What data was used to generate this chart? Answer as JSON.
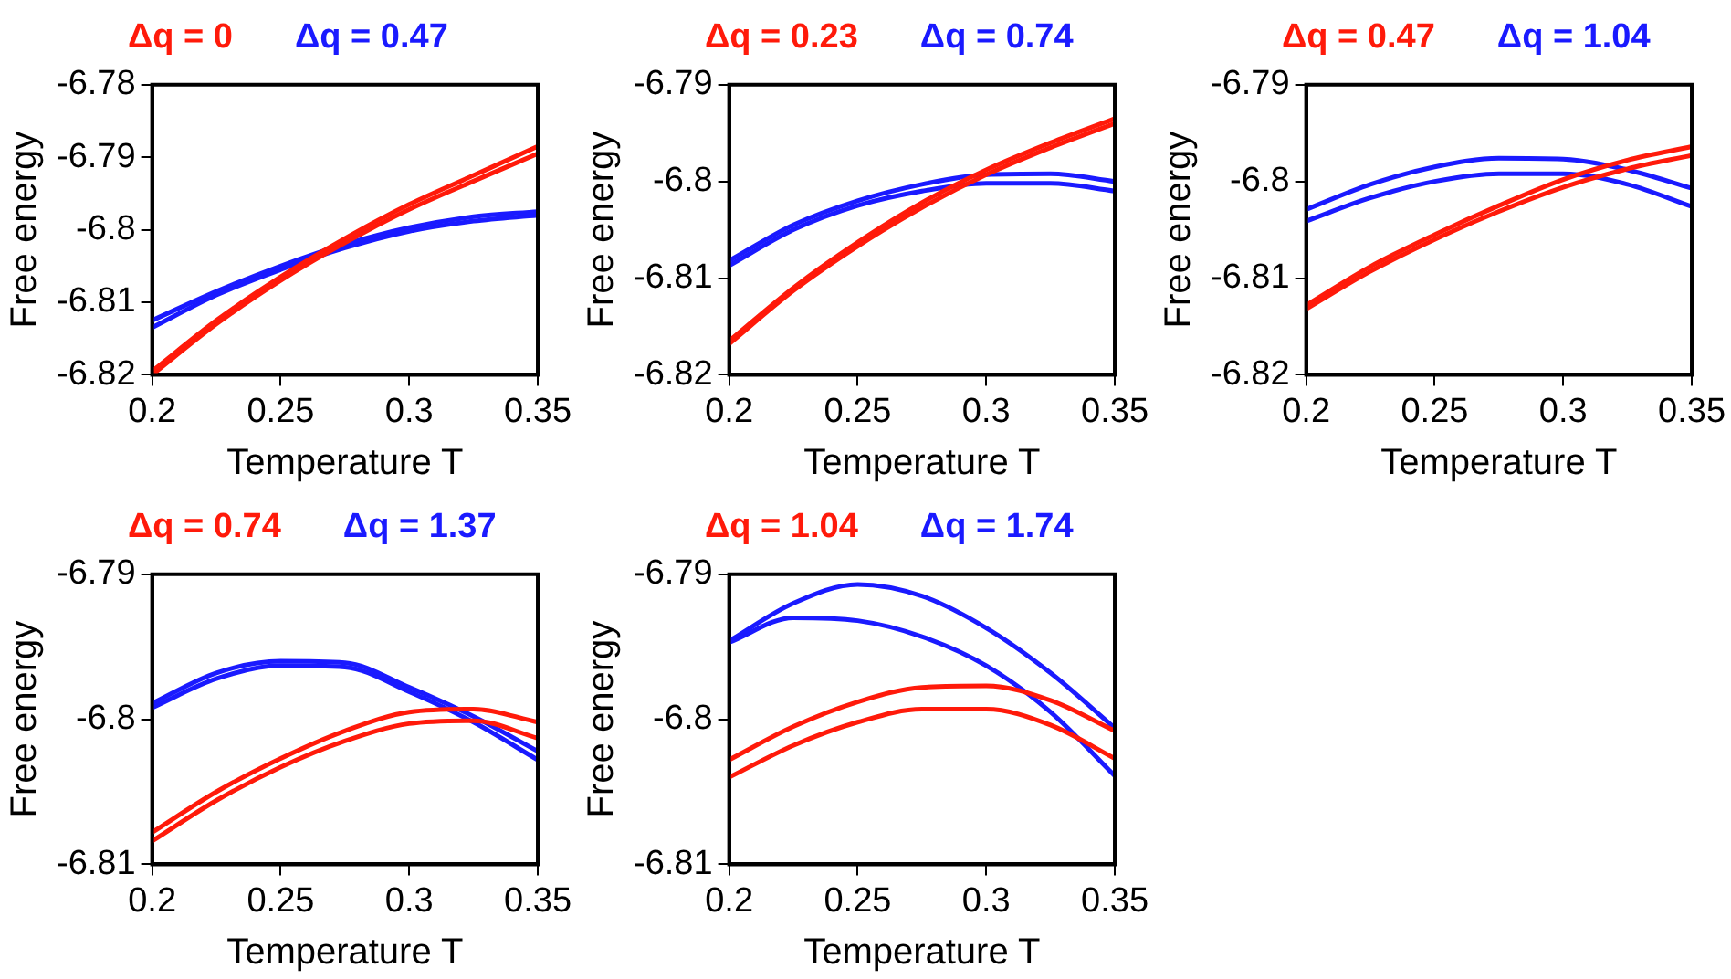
{
  "chart_data": [
    {
      "type": "line",
      "xlabel": "Temperature T",
      "ylabel": "Free energy",
      "legend": "top",
      "x": [
        0.2,
        0.225,
        0.25,
        0.275,
        0.3,
        0.325,
        0.35
      ],
      "xlim": [
        0.2,
        0.35
      ],
      "xticks": [
        0.2,
        0.25,
        0.3,
        0.35
      ],
      "ylim": [
        -6.82,
        -6.78
      ],
      "yticks": [
        -6.82,
        -6.81,
        -6.8,
        -6.79,
        -6.78
      ],
      "series": [
        {
          "name": "Δq = 0",
          "color": "#ff1a0a",
          "values": [
            -6.8195,
            -6.8125,
            -6.8065,
            -6.8012,
            -6.7965,
            -6.7925,
            -6.7885
          ]
        },
        {
          "color": "#ff1a0a",
          "values": [
            -6.82,
            -6.813,
            -6.807,
            -6.8018,
            -6.7972,
            -6.7933,
            -6.7895
          ]
        },
        {
          "name": "Δq = 0.47",
          "color": "#1a1aff",
          "values": [
            -6.8125,
            -6.8085,
            -6.805,
            -6.802,
            -6.7997,
            -6.7982,
            -6.7975
          ]
        },
        {
          "color": "#1a1aff",
          "values": [
            -6.8135,
            -6.809,
            -6.8055,
            -6.8025,
            -6.8002,
            -6.7988,
            -6.798
          ]
        }
      ]
    },
    {
      "type": "line",
      "xlabel": "Temperature T",
      "ylabel": "Free energy",
      "legend": "top",
      "x": [
        0.2,
        0.225,
        0.25,
        0.275,
        0.3,
        0.325,
        0.35
      ],
      "xlim": [
        0.2,
        0.35
      ],
      "xticks": [
        0.2,
        0.25,
        0.3,
        0.35
      ],
      "ylim": [
        -6.82,
        -6.79
      ],
      "yticks": [
        -6.82,
        -6.81,
        -6.8,
        -6.79
      ],
      "series": [
        {
          "name": "Δq = 0.23",
          "color": "#ff1a0a",
          "values": [
            -6.8165,
            -6.811,
            -6.8063,
            -6.8022,
            -6.7988,
            -6.796,
            -6.7935
          ]
        },
        {
          "color": "#ff1a0a",
          "values": [
            -6.8168,
            -6.8113,
            -6.8067,
            -6.8027,
            -6.7993,
            -6.7965,
            -6.794
          ]
        },
        {
          "name": "Δq = 0.74",
          "color": "#1a1aff",
          "values": [
            -6.8082,
            -6.8045,
            -6.802,
            -6.8003,
            -6.7993,
            -6.7992,
            -6.8
          ]
        },
        {
          "color": "#1a1aff",
          "values": [
            -6.8087,
            -6.805,
            -6.8025,
            -6.801,
            -6.8002,
            -6.8002,
            -6.801
          ]
        }
      ]
    },
    {
      "type": "line",
      "xlabel": "Temperature T",
      "ylabel": "Free energy",
      "legend": "top",
      "x": [
        0.2,
        0.225,
        0.25,
        0.275,
        0.3,
        0.325,
        0.35
      ],
      "xlim": [
        0.2,
        0.35
      ],
      "xticks": [
        0.2,
        0.25,
        0.3,
        0.35
      ],
      "ylim": [
        -6.82,
        -6.79
      ],
      "yticks": [
        -6.82,
        -6.81,
        -6.8,
        -6.79
      ],
      "series": [
        {
          "name": "Δq = 0.47",
          "color": "#ff1a0a",
          "values": [
            -6.8128,
            -6.8088,
            -6.8055,
            -6.8025,
            -6.7998,
            -6.7978,
            -6.7964
          ]
        },
        {
          "color": "#ff1a0a",
          "values": [
            -6.8132,
            -6.8093,
            -6.806,
            -6.8031,
            -6.8006,
            -6.7987,
            -6.7973
          ]
        },
        {
          "name": "Δq = 1.04",
          "color": "#1a1aff",
          "values": [
            -6.8029,
            -6.8003,
            -6.7985,
            -6.7976,
            -6.7977,
            -6.7988,
            -6.8007
          ]
        },
        {
          "color": "#1a1aff",
          "values": [
            -6.8041,
            -6.8017,
            -6.8,
            -6.7992,
            -6.7992,
            -6.8003,
            -6.8026
          ]
        }
      ]
    },
    {
      "type": "line",
      "xlabel": "Temperature T",
      "ylabel": "Free energy",
      "legend": "top",
      "x": [
        0.2,
        0.225,
        0.25,
        0.275,
        0.3,
        0.325,
        0.35
      ],
      "xlim": [
        0.2,
        0.35
      ],
      "xticks": [
        0.2,
        0.25,
        0.3,
        0.35
      ],
      "ylim": [
        -6.81,
        -6.79
      ],
      "yticks": [
        -6.81,
        -6.8,
        -6.79
      ],
      "series": [
        {
          "name": "Δq = 0.74",
          "color": "#ff1a0a",
          "values": [
            -6.8078,
            -6.805,
            -6.8027,
            -6.8008,
            -6.7995,
            -6.7993,
            -6.8002
          ]
        },
        {
          "color": "#ff1a0a",
          "values": [
            -6.8084,
            -6.8056,
            -6.8033,
            -6.8015,
            -6.8003,
            -6.8001,
            -6.8013
          ]
        },
        {
          "name": "Δq = 1.37",
          "color": "#1a1aff",
          "values": [
            -6.7989,
            -6.7968,
            -6.796,
            -6.7961,
            -6.7978,
            -6.7998,
            -6.8022
          ]
        },
        {
          "color": "#1a1aff",
          "values": [
            -6.7992,
            -6.7972,
            -6.7963,
            -6.7964,
            -6.7981,
            -6.8002,
            -6.8028
          ]
        }
      ]
    },
    {
      "type": "line",
      "xlabel": "Temperature T",
      "ylabel": "Free energy",
      "legend": "top",
      "x": [
        0.2,
        0.225,
        0.25,
        0.275,
        0.3,
        0.325,
        0.35
      ],
      "xlim": [
        0.2,
        0.35
      ],
      "xticks": [
        0.2,
        0.25,
        0.3,
        0.35
      ],
      "ylim": [
        -6.81,
        -6.79
      ],
      "yticks": [
        -6.81,
        -6.8,
        -6.79
      ],
      "series": [
        {
          "name": "Δq = 1.04",
          "color": "#ff1a0a",
          "values": [
            -6.8028,
            -6.8005,
            -6.7988,
            -6.7978,
            -6.7977,
            -6.7987,
            -6.8008
          ]
        },
        {
          "color": "#ff1a0a",
          "values": [
            -6.804,
            -6.8018,
            -6.8002,
            -6.7993,
            -6.7993,
            -6.8004,
            -6.8027
          ]
        },
        {
          "name": "Δq = 1.74",
          "color": "#1a1aff",
          "values": [
            -6.7946,
            -6.792,
            -6.7907,
            -6.7915,
            -6.7937,
            -6.7968,
            -6.8006
          ]
        },
        {
          "color": "#1a1aff",
          "values": [
            -6.7947,
            -6.793,
            -6.7932,
            -6.7943,
            -6.7963,
            -6.7995,
            -6.8039
          ]
        }
      ]
    }
  ]
}
